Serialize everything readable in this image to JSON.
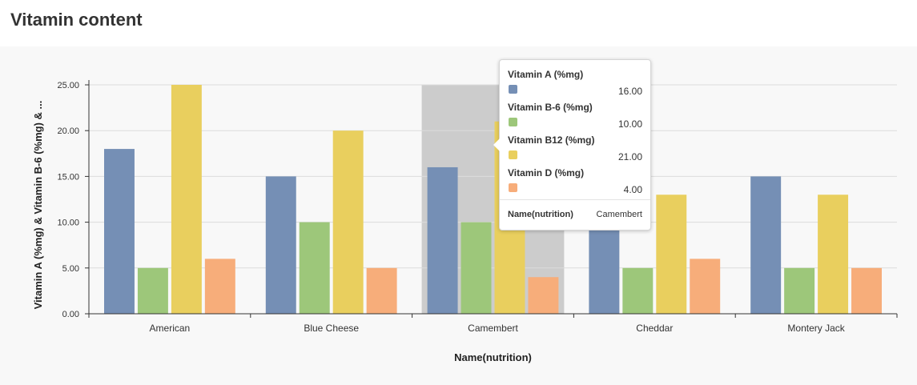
{
  "title": "Vitamin content",
  "chart_data": {
    "type": "bar",
    "categories": [
      "American",
      "Blue Cheese",
      "Camembert",
      "Cheddar",
      "Montery Jack"
    ],
    "series": [
      {
        "name": "Vitamin A (%mg)",
        "color": "#758fb5",
        "values": [
          18,
          15,
          16,
          15,
          15
        ]
      },
      {
        "name": "Vitamin B-6 (%mg)",
        "color": "#9dc77a",
        "values": [
          5,
          10,
          10,
          5,
          5
        ]
      },
      {
        "name": "Vitamin B12 (%mg)",
        "color": "#e9cf5e",
        "values": [
          25,
          20,
          21,
          13,
          13
        ]
      },
      {
        "name": "Vitamin D (%mg)",
        "color": "#f7ad7a",
        "values": [
          6,
          5,
          4,
          6,
          5
        ]
      }
    ],
    "xlabel": "Name(nutrition)",
    "ylabel": "Vitamin A (%mg) & Vitamin B-6 (%mg) & ...",
    "ylim": [
      0,
      25
    ],
    "yticks": [
      "0.00",
      "5.00",
      "10.00",
      "15.00",
      "20.00",
      "25.00"
    ],
    "grid": true,
    "highlighted_category": "Camembert"
  },
  "tooltip": {
    "items": [
      {
        "name": "Vitamin A (%mg)",
        "value": "16.00",
        "color": "#758fb5"
      },
      {
        "name": "Vitamin B-6 (%mg)",
        "value": "10.00",
        "color": "#9dc77a"
      },
      {
        "name": "Vitamin B12 (%mg)",
        "value": "21.00",
        "color": "#e9cf5e"
      },
      {
        "name": "Vitamin D (%mg)",
        "value": "4.00",
        "color": "#f7ad7a"
      }
    ],
    "footer_label": "Name(nutrition)",
    "footer_value": "Camembert"
  }
}
